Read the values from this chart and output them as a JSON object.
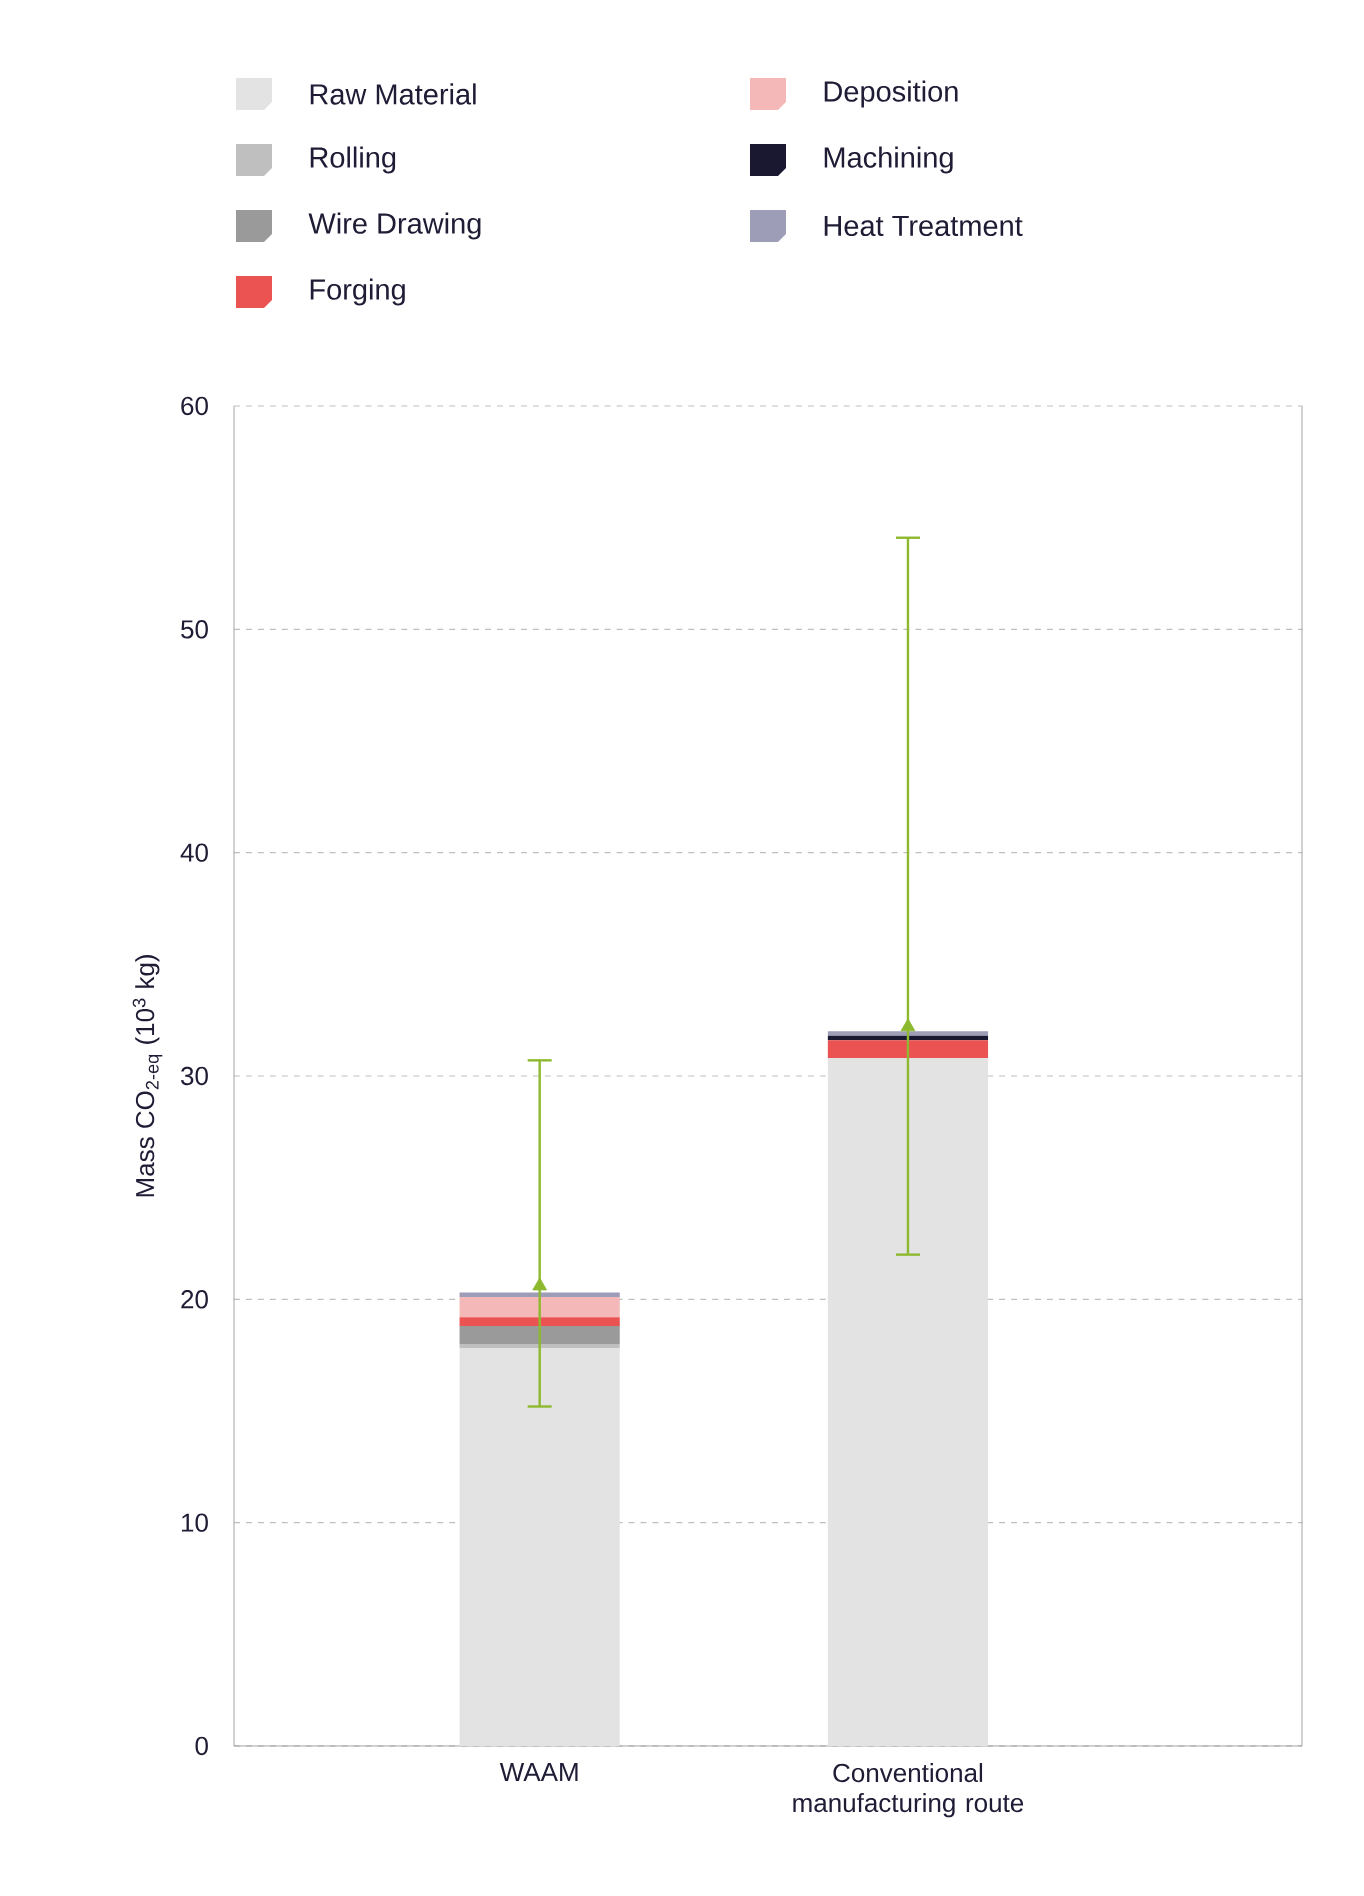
{
  "chart_data": {
    "type": "bar",
    "stacked": true,
    "ylabel": "Mass CO$_{2-eq}$ (10$^{3}$ kg)",
    "categories": [
      "WAAM",
      "Conventional manufacturing route"
    ],
    "series": [
      {
        "name": "Raw Material",
        "color": "#e3e3e3",
        "values": [
          17.8,
          30.8
        ]
      },
      {
        "name": "Rolling",
        "color": "#bfbfbf",
        "values": [
          0.2,
          0
        ]
      },
      {
        "name": "Wire Drawing",
        "color": "#9a9a9a",
        "values": [
          0.8,
          0
        ]
      },
      {
        "name": "Forging",
        "color": "#eb5252",
        "values": [
          0.4,
          0.8
        ]
      },
      {
        "name": "Deposition",
        "color": "#f5b8b8",
        "values": [
          0.9,
          0
        ]
      },
      {
        "name": "Machining",
        "color": "#1a1730",
        "values": [
          0,
          0.2
        ]
      },
      {
        "name": "Heat Treatment",
        "color": "#9d9db8",
        "values": [
          0.2,
          0.2
        ]
      },
      {
        "type": "scatter",
        "color": "#8db92e",
        "marker": "triangle",
        "values": [
          20.6,
          32.2
        ],
        "errors": [
          [
            15.2,
            30.7
          ],
          [
            22,
            54.1
          ]
        ]
      }
    ],
    "ylim": [
      0,
      60
    ],
    "yticks": [
      0,
      10,
      20,
      30,
      40,
      50,
      60
    ],
    "grid": "y",
    "legend": "top"
  }
}
